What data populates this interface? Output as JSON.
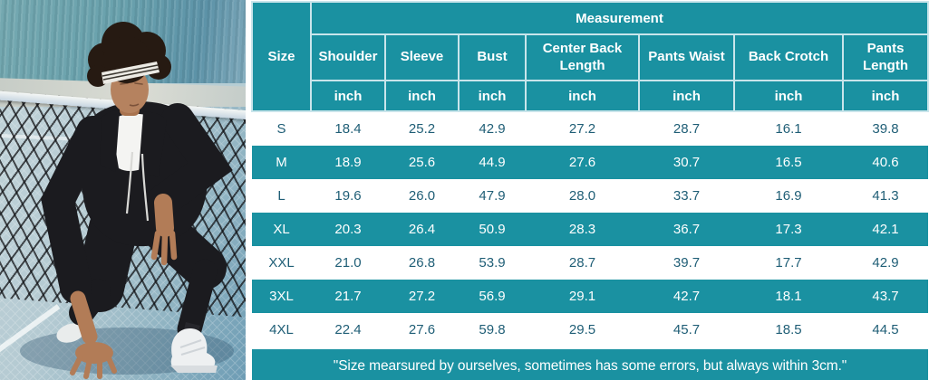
{
  "photo": {
    "alt": "Man with curly hair and striped headband wearing a black zip-up hooded tracksuit and white sneakers, crouching on a blue court in front of a tennis net"
  },
  "table": {
    "measurement_label": "Measurement",
    "size_label": "Size",
    "unit": "inch",
    "columns": [
      "Shoulder",
      "Sleeve",
      "Bust",
      "Center Back Length",
      "Pants Waist",
      "Back Crotch",
      "Pants Length"
    ],
    "rows": [
      {
        "size": "S",
        "values": [
          "18.4",
          "25.2",
          "42.9",
          "27.2",
          "28.7",
          "16.1",
          "39.8"
        ]
      },
      {
        "size": "M",
        "values": [
          "18.9",
          "25.6",
          "44.9",
          "27.6",
          "30.7",
          "16.5",
          "40.6"
        ]
      },
      {
        "size": "L",
        "values": [
          "19.6",
          "26.0",
          "47.9",
          "28.0",
          "33.7",
          "16.9",
          "41.3"
        ]
      },
      {
        "size": "XL",
        "values": [
          "20.3",
          "26.4",
          "50.9",
          "28.3",
          "36.7",
          "17.3",
          "42.1"
        ]
      },
      {
        "size": "XXL",
        "values": [
          "21.0",
          "26.8",
          "53.9",
          "28.7",
          "39.7",
          "17.7",
          "42.9"
        ]
      },
      {
        "size": "3XL",
        "values": [
          "21.7",
          "27.2",
          "56.9",
          "29.1",
          "42.7",
          "18.1",
          "43.7"
        ]
      },
      {
        "size": "4XL",
        "values": [
          "22.4",
          "27.6",
          "59.8",
          "29.5",
          "45.7",
          "18.5",
          "44.5"
        ]
      }
    ],
    "note": "\"Size mearsured by ourselves, sometimes has some errors, but always within 3cm.\""
  },
  "colors": {
    "teal": "#1a91a1",
    "row_alt_teal": "#1a91a1",
    "dark_cell_text": "#1f5e76",
    "header_text": "#ffffff",
    "grid_line": "#c9e5eb"
  }
}
